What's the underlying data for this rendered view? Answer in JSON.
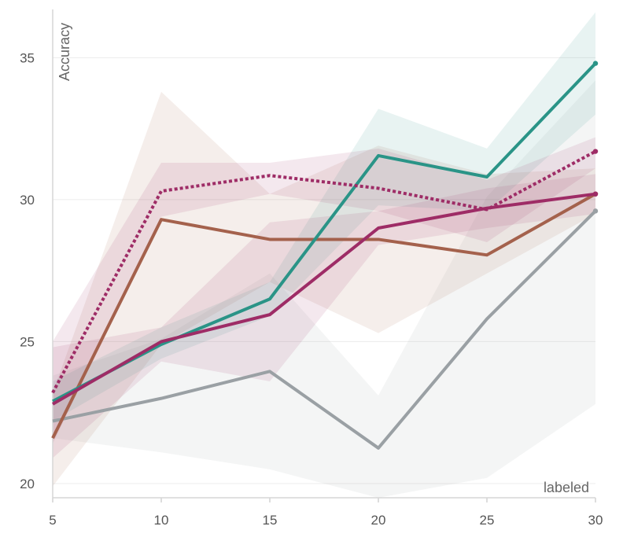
{
  "chart_data": {
    "type": "line",
    "title": "",
    "xlabel": "labeled",
    "ylabel": "Accuracy",
    "xlim": [
      5,
      30
    ],
    "ylim": [
      19.5,
      36.7
    ],
    "grid": true,
    "x_ticks": [
      5,
      10,
      15,
      20,
      25,
      30
    ],
    "y_ticks": [
      20,
      25,
      30,
      35
    ],
    "x": [
      5,
      10,
      15,
      20,
      25,
      30
    ],
    "series": [
      {
        "name": "gray",
        "color": "#9aa0a4",
        "dashed": false,
        "values": [
          22.2,
          23.0,
          23.95,
          21.25,
          25.8,
          29.6
        ],
        "band_upper": [
          23.8,
          25.1,
          27.4,
          23.1,
          30.1,
          34.2
        ],
        "band_lower": [
          21.6,
          21.1,
          20.5,
          19.5,
          20.2,
          22.8
        ]
      },
      {
        "name": "brown",
        "color": "#a4614c",
        "dashed": false,
        "values": [
          21.6,
          29.3,
          28.6,
          28.6,
          28.05,
          30.2
        ],
        "band_upper": [
          23.2,
          33.8,
          30.2,
          31.9,
          30.9,
          31.1
        ],
        "band_lower": [
          19.9,
          24.9,
          27.1,
          25.3,
          27.4,
          29.5
        ]
      },
      {
        "name": "teal",
        "color": "#2a9487",
        "dashed": false,
        "values": [
          22.9,
          24.9,
          26.5,
          31.55,
          30.8,
          34.8
        ],
        "band_upper": [
          23.6,
          25.5,
          27.1,
          33.2,
          31.8,
          36.6
        ],
        "band_lower": [
          22.2,
          24.4,
          25.9,
          29.8,
          29.6,
          33.0
        ]
      },
      {
        "name": "magenta",
        "color": "#9e2c66",
        "dashed": false,
        "values": [
          22.8,
          25.0,
          25.95,
          29.0,
          29.7,
          30.2
        ],
        "band_upper": [
          24.8,
          25.5,
          29.2,
          29.6,
          30.4,
          30.9
        ],
        "band_lower": [
          20.9,
          24.3,
          23.6,
          28.4,
          29.0,
          29.5
        ]
      },
      {
        "name": "magenta-dotted",
        "color": "#9e2c66",
        "dashed": true,
        "values": [
          23.2,
          30.3,
          30.85,
          30.4,
          29.65,
          31.7
        ],
        "band_upper": [
          25.0,
          31.3,
          31.3,
          31.8,
          30.7,
          32.2
        ],
        "band_lower": [
          21.4,
          29.4,
          30.2,
          29.6,
          28.5,
          31.1
        ]
      }
    ]
  }
}
